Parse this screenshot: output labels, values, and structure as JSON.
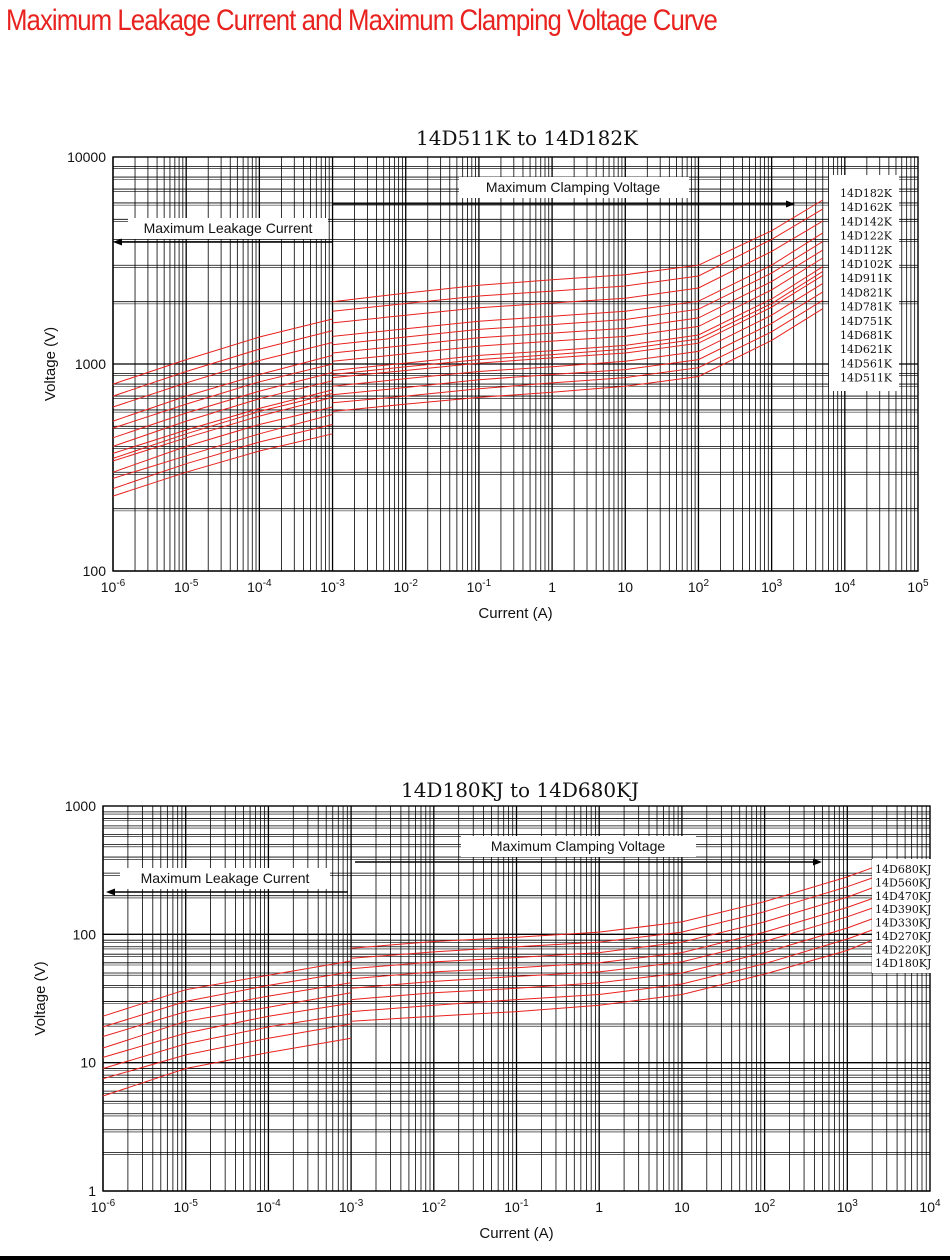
{
  "page": {
    "title": "Maximum Leakage Current and Maximum Clamping Voltage Curve",
    "title_color": "#e8231f"
  },
  "colors": {
    "curve": "#e8231f",
    "grid": "#000000"
  },
  "chart_data": [
    {
      "type": "line",
      "title": "14D511K to 14D182K",
      "xlabel": "Current (A)",
      "ylabel": "Voltage (V)",
      "xscale": "log",
      "yscale": "log",
      "xlim": [
        1e-06,
        100000
      ],
      "ylim": [
        100,
        10000
      ],
      "x_tick_labels": [
        {
          "base": "10",
          "exp": "-6"
        },
        {
          "base": "10",
          "exp": "-5"
        },
        {
          "base": "10",
          "exp": "-4"
        },
        {
          "base": "10",
          "exp": "-3"
        },
        {
          "base": "10",
          "exp": "-2"
        },
        {
          "base": "10",
          "exp": "-1"
        },
        {
          "base": "1",
          "exp": ""
        },
        {
          "base": "10",
          "exp": ""
        },
        {
          "base": "10",
          "exp": "2"
        },
        {
          "base": "10",
          "exp": "3"
        },
        {
          "base": "10",
          "exp": "4"
        },
        {
          "base": "10",
          "exp": "5"
        }
      ],
      "y_tick_labels": [
        "100",
        "1000",
        "10000"
      ],
      "grid": true,
      "legend": "right",
      "annotations": {
        "leakage": "Maximum Leakage Current",
        "clamping": "Maximum Clamping Voltage"
      },
      "leakage_x": [
        1e-06,
        1e-05,
        0.0001,
        0.001
      ],
      "clamp_x": [
        0.001,
        0.01,
        0.1,
        1,
        10,
        100,
        1000,
        5000
      ],
      "series": [
        {
          "name": "14D182K",
          "leakage": [
            800,
            1050,
            1350,
            1650
          ],
          "clamp": [
            2000,
            2200,
            2400,
            2550,
            2700,
            3000,
            4400,
            6200
          ]
        },
        {
          "name": "14D162K",
          "leakage": [
            700,
            920,
            1180,
            1450
          ],
          "clamp": [
            1800,
            1960,
            2130,
            2250,
            2380,
            2660,
            4000,
            5600
          ]
        },
        {
          "name": "14D142K",
          "leakage": [
            620,
            810,
            1040,
            1270
          ],
          "clamp": [
            1580,
            1720,
            1870,
            1970,
            2080,
            2330,
            3500,
            4900
          ]
        },
        {
          "name": "14D122K",
          "leakage": [
            530,
            700,
            890,
            1100
          ],
          "clamp": [
            1360,
            1480,
            1610,
            1700,
            1800,
            2010,
            3000,
            4300
          ]
        },
        {
          "name": "14D112K",
          "leakage": [
            490,
            640,
            820,
            1000
          ],
          "clamp": [
            1240,
            1350,
            1470,
            1550,
            1640,
            1840,
            2750,
            3900
          ]
        },
        {
          "name": "14D102K",
          "leakage": [
            440,
            580,
            740,
            910
          ],
          "clamp": [
            1130,
            1230,
            1340,
            1410,
            1490,
            1670,
            2500,
            3550
          ]
        },
        {
          "name": "14D911K",
          "leakage": [
            400,
            530,
            680,
            830
          ],
          "clamp": [
            1030,
            1120,
            1220,
            1290,
            1360,
            1520,
            2280,
            3250
          ]
        },
        {
          "name": "14D821K",
          "leakage": [
            370,
            480,
            610,
            750
          ],
          "clamp": [
            930,
            1010,
            1100,
            1160,
            1230,
            1380,
            2060,
            2950
          ]
        },
        {
          "name": "14D781K",
          "leakage": [
            350,
            460,
            590,
            720
          ],
          "clamp": [
            890,
            970,
            1050,
            1110,
            1180,
            1320,
            1960,
            2800
          ]
        },
        {
          "name": "14D751K",
          "leakage": [
            340,
            440,
            560,
            690
          ],
          "clamp": [
            860,
            930,
            1010,
            1070,
            1130,
            1260,
            1880,
            2680
          ]
        },
        {
          "name": "14D681K",
          "leakage": [
            300,
            400,
            510,
            620
          ],
          "clamp": [
            780,
            850,
            920,
            970,
            1030,
            1150,
            1720,
            2450
          ]
        },
        {
          "name": "14D621K",
          "leakage": [
            280,
            360,
            460,
            570
          ],
          "clamp": [
            710,
            770,
            840,
            890,
            940,
            1050,
            1570,
            2230
          ]
        },
        {
          "name": "14D561K",
          "leakage": [
            250,
            330,
            420,
            510
          ],
          "clamp": [
            650,
            700,
            760,
            810,
            860,
            960,
            1430,
            2030
          ]
        },
        {
          "name": "14D511K",
          "leakage": [
            230,
            300,
            380,
            460
          ],
          "clamp": [
            590,
            640,
            690,
            730,
            780,
            870,
            1300,
            1850
          ]
        }
      ]
    },
    {
      "type": "line",
      "title": "14D180KJ to 14D680KJ",
      "xlabel": "Current (A)",
      "ylabel": "Voltage (V)",
      "xscale": "log",
      "yscale": "log",
      "xlim": [
        1e-06,
        10000
      ],
      "ylim": [
        1,
        1000
      ],
      "x_tick_labels": [
        {
          "base": "10",
          "exp": "-6"
        },
        {
          "base": "10",
          "exp": "-5"
        },
        {
          "base": "10",
          "exp": "-4"
        },
        {
          "base": "10",
          "exp": "-3"
        },
        {
          "base": "10",
          "exp": "-2"
        },
        {
          "base": "10",
          "exp": "-1"
        },
        {
          "base": "1",
          "exp": ""
        },
        {
          "base": "10",
          "exp": ""
        },
        {
          "base": "10",
          "exp": "2"
        },
        {
          "base": "10",
          "exp": "3"
        },
        {
          "base": "10",
          "exp": "4"
        }
      ],
      "y_tick_labels": [
        "1",
        "10",
        "100",
        "1000"
      ],
      "grid": true,
      "legend": "right",
      "annotations": {
        "leakage": "Maximum Leakage Current",
        "clamping": "Maximum Clamping Voltage"
      },
      "leakage_x": [
        1e-06,
        1e-05,
        0.0001,
        0.001
      ],
      "clamp_x": [
        0.001,
        0.01,
        0.1,
        1,
        10,
        100,
        1000,
        2000
      ],
      "series": [
        {
          "name": "14D680KJ",
          "leakage": [
            23,
            37,
            48,
            62
          ],
          "clamp": [
            78,
            88,
            95,
            104,
            125,
            180,
            280,
            330
          ]
        },
        {
          "name": "14D560KJ",
          "leakage": [
            19,
            30,
            40,
            51
          ],
          "clamp": [
            65,
            73,
            80,
            87,
            104,
            150,
            235,
            275
          ]
        },
        {
          "name": "14D470KJ",
          "leakage": [
            16,
            25,
            33,
            42
          ],
          "clamp": [
            54,
            61,
            66,
            72,
            87,
            125,
            195,
            230
          ]
        },
        {
          "name": "14D390KJ",
          "leakage": [
            13,
            21,
            27,
            35
          ],
          "clamp": [
            45,
            51,
            55,
            60,
            72,
            104,
            162,
            190
          ]
        },
        {
          "name": "14D330KJ",
          "leakage": [
            11,
            17,
            23,
            29
          ],
          "clamp": [
            38,
            43,
            47,
            51,
            61,
            88,
            137,
            160
          ]
        },
        {
          "name": "14D270KJ",
          "leakage": [
            9,
            14,
            19,
            24
          ],
          "clamp": [
            31,
            35,
            38,
            42,
            50,
            72,
            112,
            132
          ]
        },
        {
          "name": "14D220KJ",
          "leakage": [
            7.5,
            11.5,
            15.5,
            20
          ],
          "clamp": [
            25,
            28,
            31,
            34,
            41,
            59,
            92,
            108
          ]
        },
        {
          "name": "14D180KJ",
          "leakage": [
            5.5,
            9,
            12,
            15.5
          ],
          "clamp": [
            21,
            23,
            25,
            28,
            34,
            49,
            75,
            90
          ]
        }
      ]
    }
  ]
}
